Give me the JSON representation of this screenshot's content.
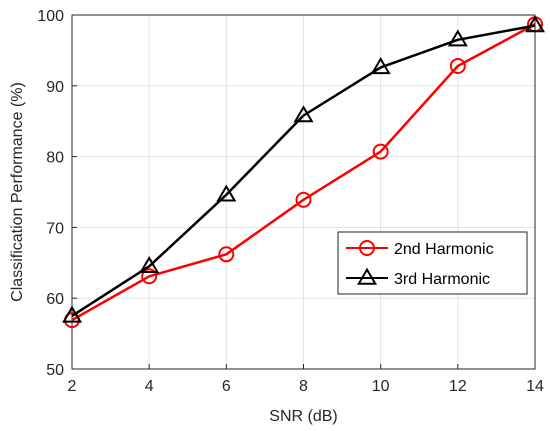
{
  "chart_data": {
    "type": "line",
    "x": [
      2,
      4,
      6,
      8,
      10,
      12,
      14
    ],
    "xlabel": "SNR (dB)",
    "ylabel": "Classification Performance (%)",
    "xlim": [
      2,
      14
    ],
    "ylim": [
      50,
      100
    ],
    "xticks": [
      2,
      4,
      6,
      8,
      10,
      12,
      14
    ],
    "yticks": [
      50,
      60,
      70,
      80,
      90,
      100
    ],
    "grid": true,
    "legend_position": "right",
    "series": [
      {
        "name": "2nd Harmonic",
        "color": "#ff0000",
        "marker": "circle",
        "values": [
          56.9,
          63.1,
          66.2,
          73.9,
          80.7,
          92.8,
          98.7
        ]
      },
      {
        "name": "3rd Harmonic",
        "color": "#000000",
        "marker": "triangle",
        "values": [
          57.5,
          64.5,
          74.6,
          85.8,
          92.6,
          96.5,
          98.5
        ]
      }
    ]
  }
}
